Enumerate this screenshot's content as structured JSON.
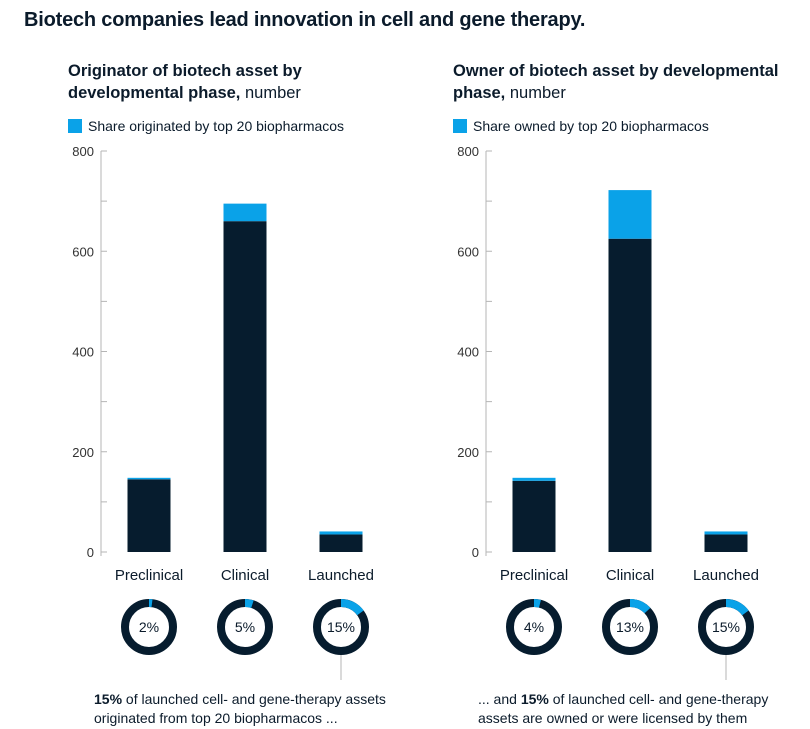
{
  "title": "Biotech companies lead innovation in cell and gene therapy.",
  "colors": {
    "dark": "#061c2e",
    "accent": "#0aa2e8",
    "axis": "#b5b5b5",
    "text": "#0b1b2b"
  },
  "chart_data": [
    {
      "type": "bar",
      "stacked": true,
      "title": "Originator of biotech asset by developmental phase,",
      "title_unit": "number",
      "legend": "Share originated by top 20 biopharmacos",
      "categories": [
        "Preclinical",
        "Clinical",
        "Launched"
      ],
      "ylim": [
        0,
        800
      ],
      "yticks": [
        0,
        200,
        400,
        600,
        800
      ],
      "series": [
        {
          "key": "other",
          "values": [
            145,
            660,
            35
          ]
        },
        {
          "key": "top20",
          "name": "Share originated by top 20 biopharmacos",
          "values": [
            3,
            35,
            6
          ]
        }
      ],
      "donut_shares": [
        0.02,
        0.05,
        0.15
      ],
      "donut_labels": [
        "2%",
        "5%",
        "15%"
      ],
      "caption_bold": "15%",
      "caption_rest_1": " of launched cell- and gene-therapy assets",
      "caption_line_2": "originated from top 20 biopharmacos ..."
    },
    {
      "type": "bar",
      "stacked": true,
      "title": "Owner of biotech asset by developmental phase,",
      "title_unit": "number",
      "legend": "Share owned by top 20 biopharmacos",
      "categories": [
        "Preclinical",
        "Clinical",
        "Launched"
      ],
      "ylim": [
        0,
        800
      ],
      "yticks": [
        0,
        200,
        400,
        600,
        800
      ],
      "series": [
        {
          "key": "other",
          "values": [
            142,
            625,
            35
          ]
        },
        {
          "key": "top20",
          "name": "Share owned by top 20 biopharmacos",
          "values": [
            6,
            97,
            6
          ]
        }
      ],
      "donut_shares": [
        0.04,
        0.13,
        0.15
      ],
      "donut_labels": [
        "4%",
        "13%",
        "15%"
      ],
      "caption_pre": "... and ",
      "caption_bold": "15%",
      "caption_rest_1": " of launched cell- and gene-therapy",
      "caption_line_2": "assets are owned or were licensed by them"
    }
  ]
}
